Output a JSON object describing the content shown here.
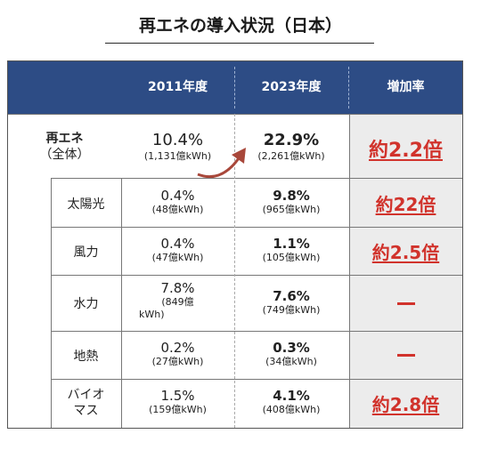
{
  "title": "再エネの導入状況（日本）",
  "header": {
    "col1": "2011年度",
    "col2": "2023年度",
    "col3": "増加率"
  },
  "total": {
    "label_line1": "再エネ",
    "label_line2": "（全体）",
    "v2011": "10.4%",
    "v2011_sub": "(1,131億kWh)",
    "v2023": "22.9%",
    "v2023_sub": "(2,261億kWh)",
    "rate": "約2.2倍"
  },
  "rows": [
    {
      "label": "太陽光",
      "v2011": "0.4%",
      "v2011_sub": "(48億kWh)",
      "v2023": "9.8%",
      "v2023_sub": "(965億kWh)",
      "rate": "約22倍"
    },
    {
      "label": "風力",
      "v2011": "0.4%",
      "v2011_sub": "(47億kWh)",
      "v2023": "1.1%",
      "v2023_sub": "(105億kWh)",
      "rate": "約2.5倍"
    },
    {
      "label": "水力",
      "v2011": "7.8%",
      "v2011_sub": "(849億",
      "v2011_sub2": "kWh)",
      "v2023": "7.6%",
      "v2023_sub": "(749億kWh)",
      "rate": "－"
    },
    {
      "label": "地熱",
      "v2011": "0.2%",
      "v2011_sub": "(27億kWh)",
      "v2023": "0.3%",
      "v2023_sub": "(34億kWh)",
      "rate": "－"
    },
    {
      "label_line1": "バイオ",
      "label_line2": "マス",
      "v2011": "1.5%",
      "v2011_sub": "(159億kWh)",
      "v2023": "4.1%",
      "v2023_sub": "(408億kWh)",
      "rate": "約2.8倍"
    }
  ],
  "colors": {
    "header_bg": "#2d4c85",
    "rate_text": "#d1332c",
    "rate_bg": "#ececec",
    "arrow": "#a8473a"
  }
}
